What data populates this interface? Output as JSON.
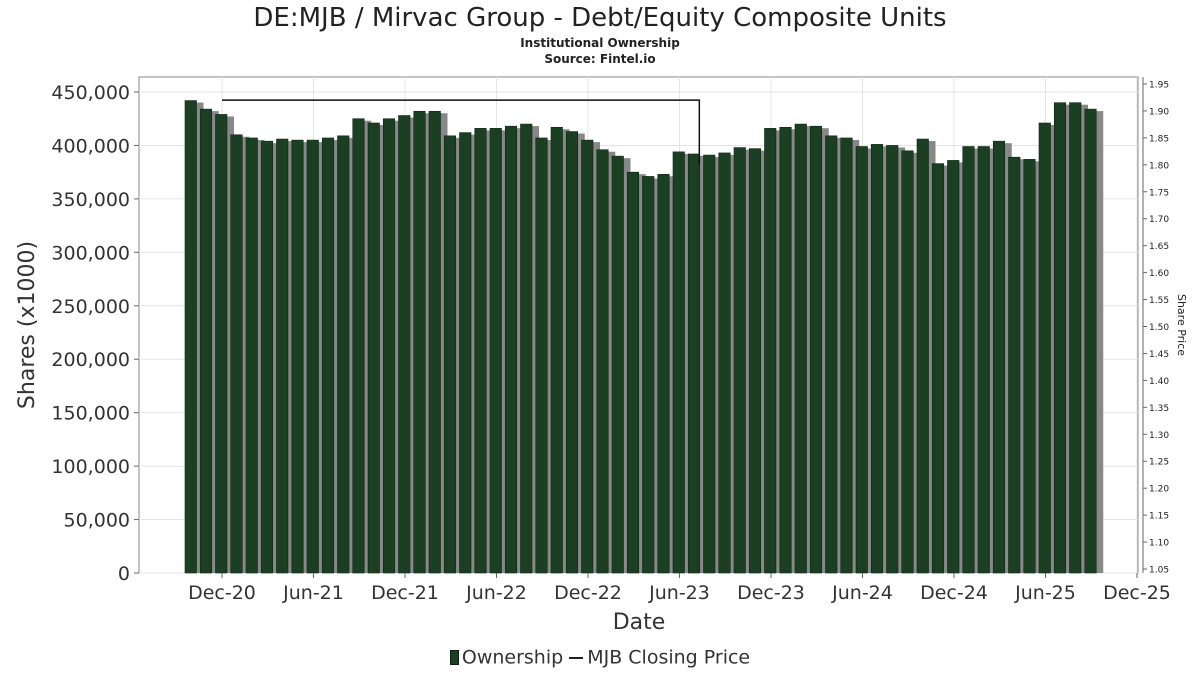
{
  "chart_data": {
    "type": "bar",
    "title": "DE:MJB / Mirvac Group - Debt/Equity Composite Units",
    "subtitle": [
      "Institutional Ownership",
      "Source: Fintel.io"
    ],
    "xlabel": "Date",
    "ylabel": "Shares (x1000)",
    "y2label": "Share Price",
    "ylim": [
      0,
      450000
    ],
    "y2lim": [
      1.05,
      1.95
    ],
    "yticks": [
      0,
      50000,
      100000,
      150000,
      200000,
      250000,
      300000,
      350000,
      400000,
      450000
    ],
    "ytick_labels": [
      "0",
      "50,000",
      "100,000",
      "150,000",
      "200,000",
      "250,000",
      "300,000",
      "350,000",
      "400,000",
      "450,000"
    ],
    "y2ticks": [
      "1.05",
      "1.10",
      "1.15",
      "1.20",
      "1.25",
      "1.30",
      "1.35",
      "1.40",
      "1.45",
      "1.50",
      "1.55",
      "1.60",
      "1.65",
      "1.70",
      "1.75",
      "1.80",
      "1.85",
      "1.90",
      "1.95"
    ],
    "xtick_labels": [
      "Dec-20",
      "Jun-21",
      "Dec-21",
      "Jun-22",
      "Dec-22",
      "Jun-23",
      "Dec-23",
      "Jun-24",
      "Dec-24",
      "Jun-25",
      "Dec-25"
    ],
    "grid": true,
    "legend_position": "bottom",
    "colors": {
      "bar": "#1b3f22",
      "bar_shadow": "#888888",
      "line": "#111111"
    },
    "series": [
      {
        "name": "Ownership",
        "values": [
          442000,
          434000,
          429000,
          410000,
          407000,
          404000,
          406000,
          405000,
          405000,
          407000,
          409000,
          425000,
          421000,
          425000,
          428000,
          432000,
          432000,
          409000,
          412000,
          416000,
          416000,
          418000,
          420000,
          407000,
          417000,
          413000,
          405000,
          396000,
          390000,
          375000,
          371000,
          373000,
          394000,
          392000,
          391000,
          393000,
          398000,
          397000,
          416000,
          417000,
          420000,
          418000,
          409000,
          407000,
          399000,
          401000,
          400000,
          395000,
          406000,
          383000,
          386000,
          399000,
          399000,
          404000,
          389000,
          387000,
          421000,
          440000,
          440000,
          434000
        ]
      },
      {
        "name": "MJB Closing Price",
        "points": [
          [
            0,
            1.92
          ],
          [
            31.3,
            1.92
          ],
          [
            31.3,
            1.8
          ]
        ]
      }
    ]
  },
  "legend": {
    "ownership_label": "Ownership",
    "price_label": "MJB Closing Price"
  }
}
